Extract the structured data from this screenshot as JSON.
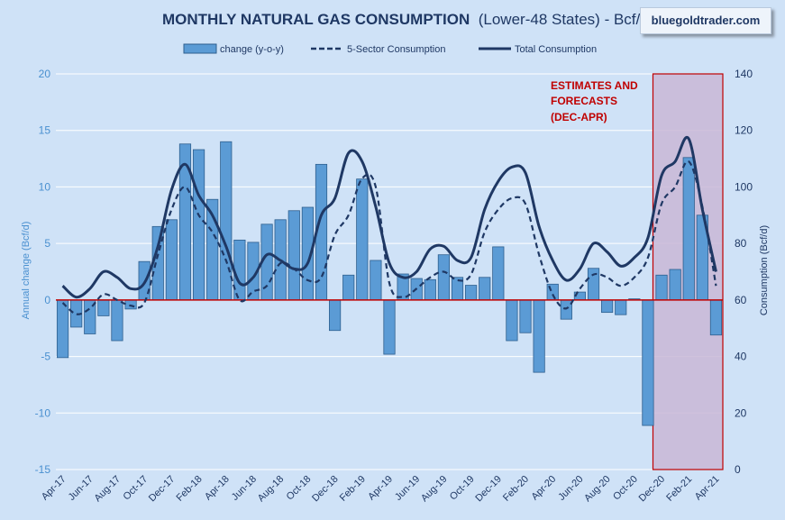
{
  "badge": "bluegoldtrader.com",
  "chart_data": {
    "type": "bar",
    "title": "MONTHLY NATURAL GAS CONSUMPTION",
    "subtitle": "(Lower-48 States) - Bcf/d",
    "ylabel_left": "Annual change (Bcf/d)",
    "ylabel_right": "Consumption (Bcf/d)",
    "ylim_left": [
      -15,
      20
    ],
    "ylim_right": [
      0,
      140
    ],
    "yticks_left": [
      "20",
      "15",
      "10",
      "5",
      "0",
      "-5",
      "-10",
      "-15"
    ],
    "yticks_left_values": [
      20,
      15,
      10,
      5,
      0,
      -5,
      -10,
      -15
    ],
    "yticks_right": [
      "140",
      "120",
      "100",
      "80",
      "60",
      "40",
      "20",
      "0"
    ],
    "yticks_right_values": [
      140,
      120,
      100,
      80,
      60,
      40,
      20,
      0
    ],
    "x": [
      "Apr-17",
      "May-17",
      "Jun-17",
      "Jul-17",
      "Aug-17",
      "Sep-17",
      "Oct-17",
      "Nov-17",
      "Dec-17",
      "Jan-18",
      "Feb-18",
      "Mar-18",
      "Apr-18",
      "May-18",
      "Jun-18",
      "Jul-18",
      "Aug-18",
      "Sep-18",
      "Oct-18",
      "Nov-18",
      "Dec-18",
      "Jan-19",
      "Feb-19",
      "Mar-19",
      "Apr-19",
      "May-19",
      "Jun-19",
      "Jul-19",
      "Aug-19",
      "Sep-19",
      "Oct-19",
      "Nov-19",
      "Dec-19",
      "Jan-20",
      "Feb-20",
      "Mar-20",
      "Apr-20",
      "May-20",
      "Jun-20",
      "Jul-20",
      "Aug-20",
      "Sep-20",
      "Oct-20",
      "Nov-20",
      "Dec-20",
      "Jan-21",
      "Feb-21",
      "Mar-21",
      "Apr-21"
    ],
    "xtick_labels": [
      "Apr-17",
      "Jun-17",
      "Aug-17",
      "Oct-17",
      "Dec-17",
      "Feb-18",
      "Apr-18",
      "Jun-18",
      "Aug-18",
      "Oct-18",
      "Dec-18",
      "Feb-19",
      "Apr-19",
      "Jun-19",
      "Aug-19",
      "Oct-19",
      "Dec-19",
      "Feb-20",
      "Apr-20",
      "Jun-20",
      "Aug-20",
      "Oct-20",
      "Dec-20",
      "Feb-21",
      "Apr-21"
    ],
    "series": [
      {
        "name": "change (y-o-y)",
        "type": "bar",
        "axis": "left",
        "values": [
          -5.1,
          -2.4,
          -3.0,
          -1.4,
          -3.6,
          -0.8,
          3.4,
          6.5,
          7.1,
          13.8,
          13.3,
          8.9,
          14.0,
          5.3,
          5.1,
          6.7,
          7.1,
          7.9,
          8.2,
          12.0,
          -2.7,
          2.2,
          10.7,
          3.5,
          -4.8,
          2.3,
          1.9,
          1.8,
          4.0,
          2.0,
          1.3,
          2.0,
          4.7,
          -3.6,
          -2.9,
          -6.4,
          1.4,
          -1.7,
          0.7,
          2.8,
          -1.1,
          -1.3,
          0.1,
          -11.1,
          2.2,
          2.7,
          12.6,
          7.5,
          -3.1
        ]
      },
      {
        "name": "5-Sector Consumption",
        "type": "line",
        "axis": "right",
        "dash": true,
        "values": [
          59,
          55,
          57,
          62,
          60,
          58,
          59,
          76,
          92,
          100,
          90,
          84,
          74,
          60,
          63,
          65,
          73,
          71,
          67,
          68,
          83,
          90,
          103,
          100,
          66,
          61,
          64,
          68,
          70,
          67,
          69,
          84,
          92,
          96,
          94,
          76,
          62,
          57,
          64,
          69,
          68,
          65,
          68,
          75,
          94,
          100,
          109,
          93,
          65
        ]
      },
      {
        "name": "Total Consumption",
        "type": "line",
        "axis": "right",
        "dash": false,
        "values": [
          65,
          61,
          64,
          70,
          68,
          64,
          66,
          79,
          99,
          108,
          97,
          90,
          79,
          66,
          68,
          76,
          74,
          71,
          73,
          90,
          96,
          112,
          109,
          93,
          73,
          68,
          70,
          78,
          79,
          74,
          75,
          92,
          102,
          107,
          105,
          86,
          74,
          67,
          71,
          80,
          77,
          72,
          75,
          82,
          104,
          109,
          117,
          92,
          70
        ]
      }
    ],
    "highlight_box": {
      "from": "Dec-20",
      "to": "Apr-21"
    },
    "annotation": [
      "ESTIMATES AND",
      "FORECASTS",
      "(DEC-APR)"
    ],
    "grid": true,
    "legend_position": "top"
  },
  "colors": {
    "background": "#cfe2f7",
    "bar_fill": "#5b9bd5",
    "bar_stroke": "#2e5f8e",
    "line": "#1f3864",
    "zero_line": "#c00000",
    "highlight_fill": "#c9b7d6",
    "highlight_stroke": "#c00000",
    "grid": "#ffffff"
  }
}
